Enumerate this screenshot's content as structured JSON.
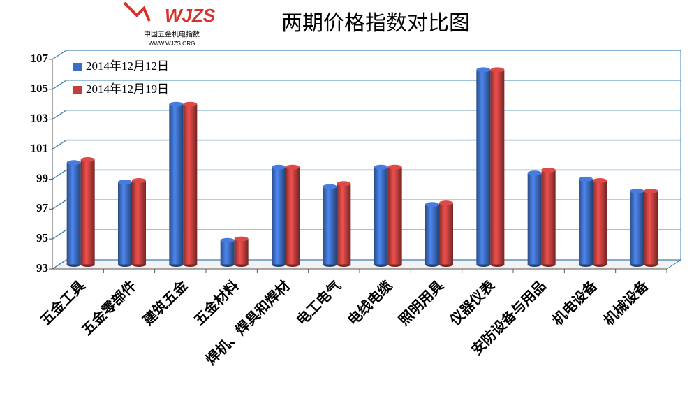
{
  "logo": {
    "brand": "WJZS",
    "name": "中国五金机电指数",
    "url": "WWW.WJZS.ORG"
  },
  "chart_data": {
    "type": "bar",
    "title": "两期价格指数对比图",
    "categories": [
      "五金工具",
      "五金零部件",
      "建筑五金",
      "五金材料",
      "焊机、焊具和焊材",
      "电工电气",
      "电线电缆",
      "照明用具",
      "仪器仪表",
      "安防设备与用品",
      "机电设备",
      "机械设备"
    ],
    "series": [
      {
        "name": "2014年12月12日",
        "color": "#3d6cc0",
        "values": [
          99.8,
          98.5,
          103.7,
          94.6,
          99.5,
          98.2,
          99.5,
          97.0,
          106.0,
          99.1,
          98.7,
          97.9
        ]
      },
      {
        "name": "2014年12月19日",
        "color": "#c0403e",
        "values": [
          100.0,
          98.6,
          103.7,
          94.7,
          99.5,
          98.4,
          99.5,
          97.1,
          106.0,
          99.3,
          98.6,
          97.9
        ]
      }
    ],
    "ylim": [
      93,
      107
    ],
    "yticks": [
      93,
      95,
      97,
      99,
      101,
      103,
      105,
      107
    ],
    "grid": true,
    "legend": "top-left"
  }
}
